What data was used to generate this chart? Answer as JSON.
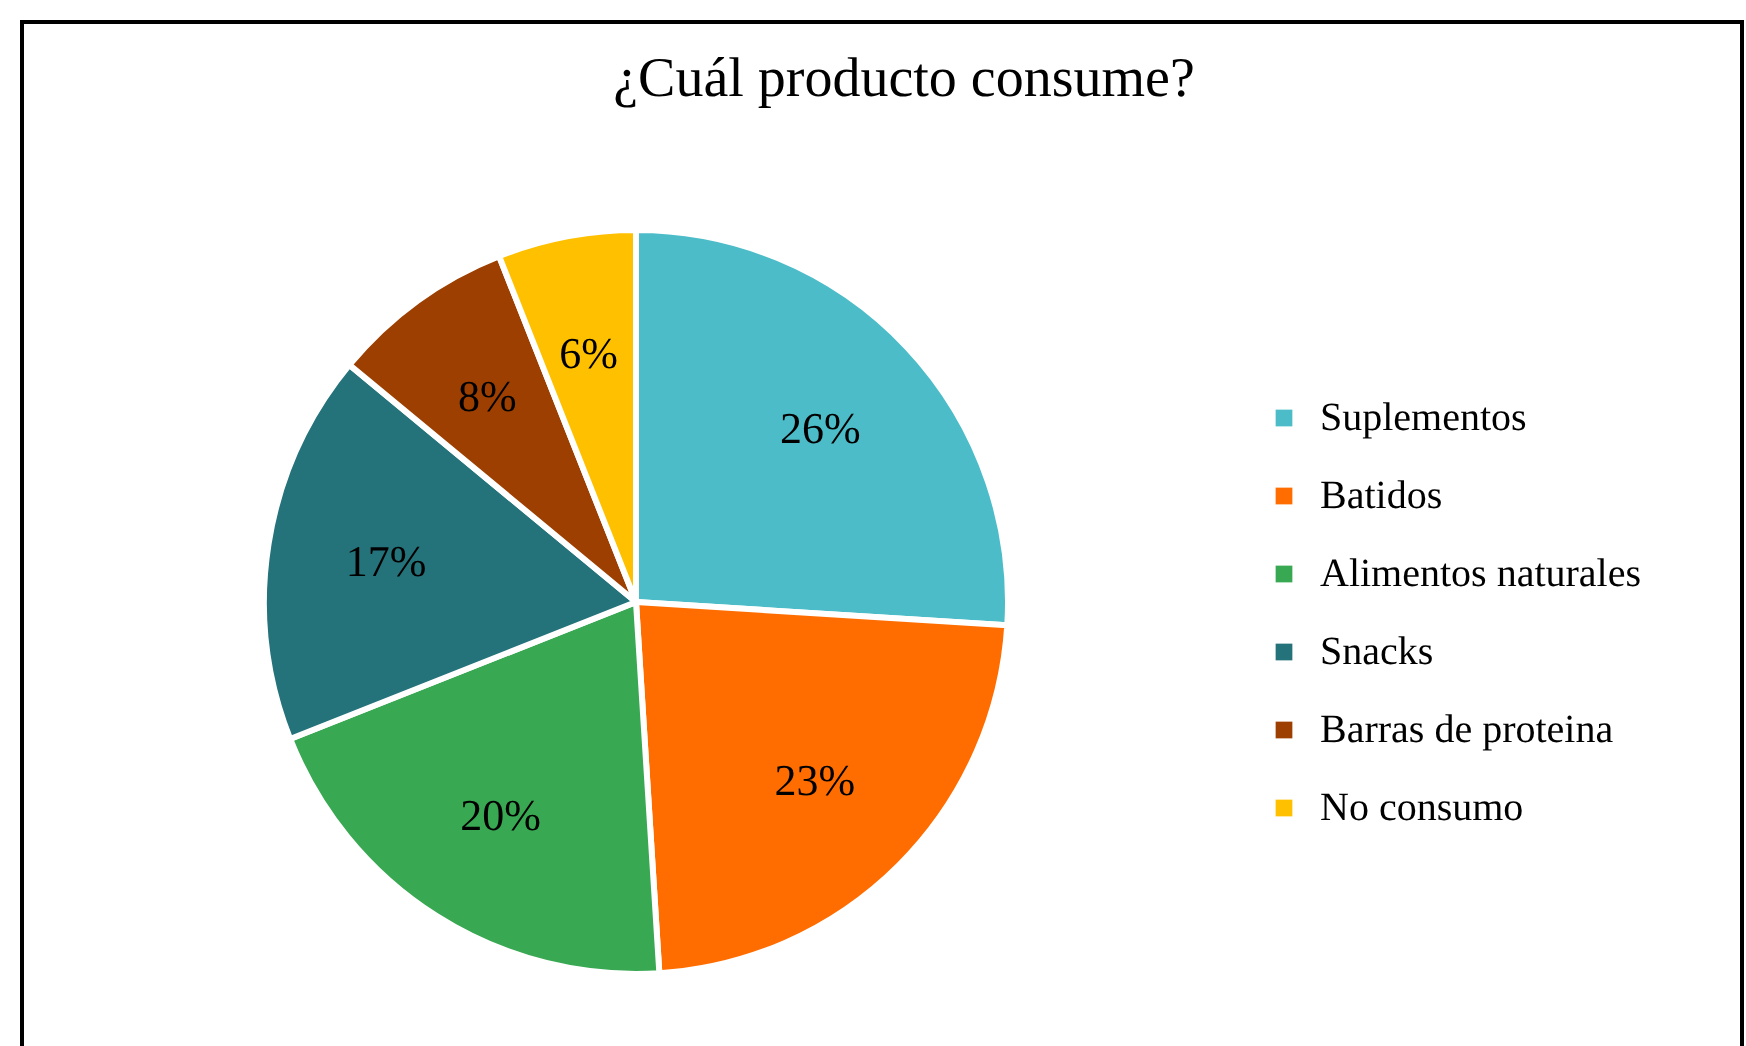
{
  "chart_data": {
    "type": "pie",
    "title": "¿Cuál producto consume?",
    "categories": [
      "Suplementos",
      "Batidos",
      "Alimentos naturales",
      "Snacks",
      "Barras de proteina",
      "No consumo"
    ],
    "values": [
      26,
      23,
      20,
      17,
      8,
      6
    ],
    "value_labels": [
      "26%",
      "23%",
      "20%",
      "17%",
      "8%",
      "6%"
    ],
    "colors": [
      "#4bbcc8",
      "#ff6d00",
      "#38a852",
      "#24727a",
      "#9c3f00",
      "#ffc000"
    ],
    "legend": "right"
  }
}
